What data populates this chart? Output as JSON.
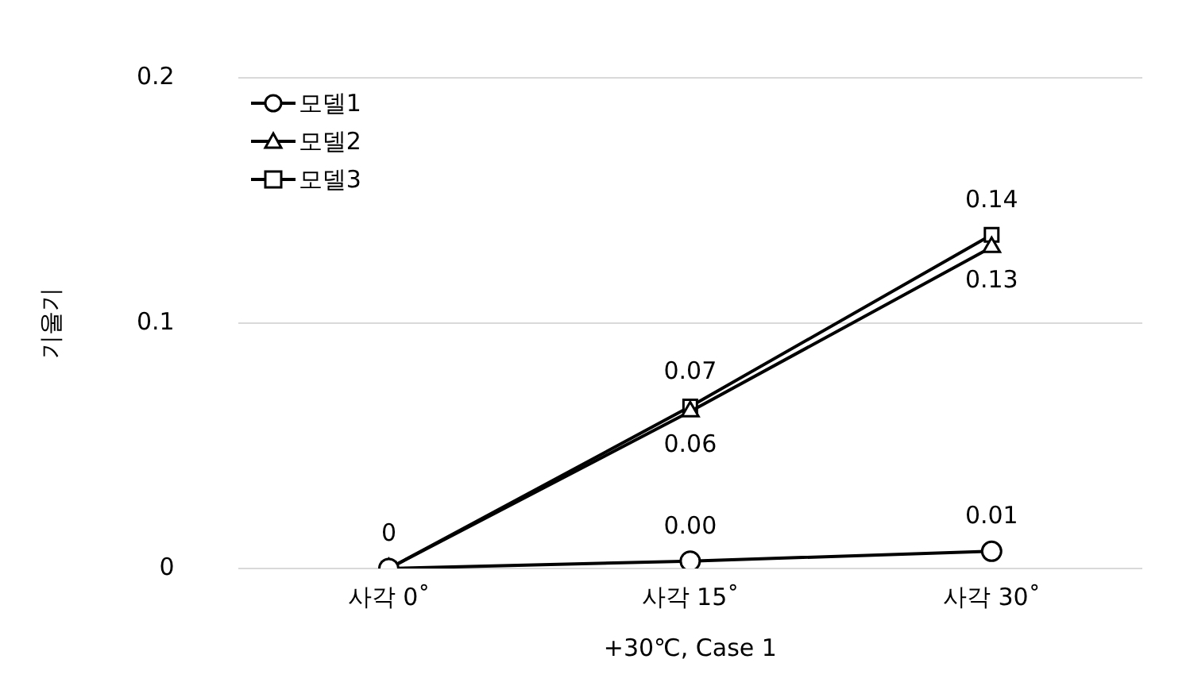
{
  "chart_data": {
    "type": "line",
    "xlabel": "+30℃, Case 1",
    "ylabel": "기울기",
    "categories": [
      "사각 0˚",
      "사각 15˚",
      "사각 30˚"
    ],
    "series": [
      {
        "name": "모델1",
        "color": "#000000",
        "marker": "circle",
        "values": [
          0,
          0.003,
          0.007
        ],
        "value_labels": [
          null,
          "0.00",
          "0.01"
        ]
      },
      {
        "name": "모델2",
        "color": "#000000",
        "marker": "triangle",
        "values": [
          0,
          0.064,
          0.131
        ],
        "value_labels": [
          null,
          "0.06",
          "0.13"
        ]
      },
      {
        "name": "모델3",
        "color": "#000000",
        "marker": "square",
        "values": [
          0,
          0.066,
          0.136
        ],
        "value_labels": [
          "0",
          "0.07",
          "0.14"
        ]
      }
    ],
    "ylim": [
      0,
      0.2
    ],
    "yticks": [
      0,
      0.1,
      0.2
    ],
    "grid": "y",
    "legend": "top left",
    "line_style": "solid"
  }
}
